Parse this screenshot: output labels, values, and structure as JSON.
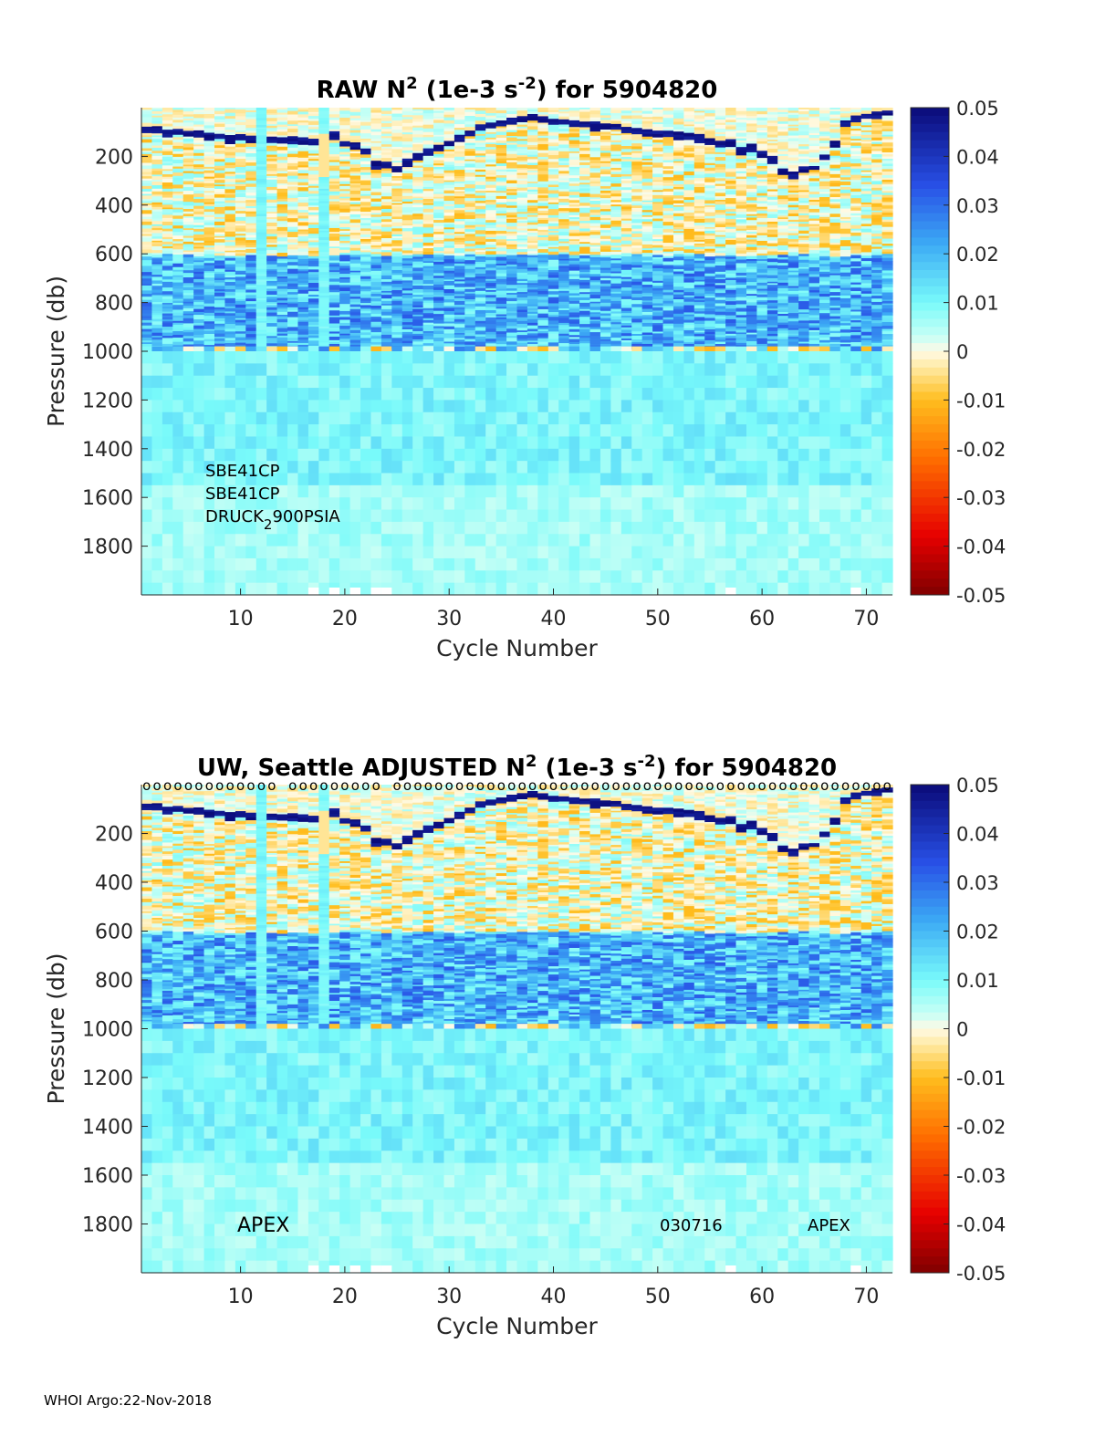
{
  "chart_data": [
    {
      "type": "heatmap",
      "title": "RAW N",
      "title_sup1": "2",
      "title_mid": " (1e-3 s",
      "title_sup2": "-2",
      "title_end": ") for 5904820",
      "xlabel": "Cycle Number",
      "ylabel": "Pressure (db)",
      "xlim": [
        1,
        72
      ],
      "ylim": [
        0,
        2000
      ],
      "xticks": [
        10,
        20,
        30,
        40,
        50,
        60,
        70
      ],
      "yticks": [
        200,
        400,
        600,
        800,
        1000,
        1200,
        1400,
        1600,
        1800
      ],
      "colorbar": {
        "range": [
          -0.05,
          0.05
        ],
        "ticks": [
          "0.05",
          "0.04",
          "0.03",
          "0.02",
          "0.01",
          "0",
          "-0.01",
          "-0.02",
          "-0.03",
          "-0.04",
          "-0.05"
        ]
      },
      "annotations": [
        "SBE41CP",
        "SBE41CP",
        "DRUCK",
        "2",
        "900PSIA"
      ],
      "thermocline_pressure": [
        80,
        85,
        95,
        95,
        100,
        105,
        115,
        110,
        125,
        120,
        125,
        135,
        130,
        130,
        125,
        135,
        140,
        130,
        110,
        140,
        150,
        175,
        230,
        235,
        240,
        220,
        200,
        180,
        160,
        140,
        120,
        100,
        80,
        70,
        60,
        50,
        40,
        35,
        45,
        50,
        55,
        60,
        65,
        70,
        75,
        75,
        80,
        90,
        95,
        100,
        105,
        110,
        115,
        120,
        125,
        140,
        140,
        170,
        160,
        190,
        210,
        260,
        270,
        250,
        240,
        200,
        140,
        60,
        40,
        30,
        20,
        15
      ]
    },
    {
      "type": "heatmap",
      "title": "UW, Seattle  ADJUSTED N",
      "title_sup1": "2",
      "title_mid": " (1e-3 s",
      "title_sup2": "-2",
      "title_end": ") for 5904820",
      "xlabel": "Cycle Number",
      "ylabel": "Pressure (db)",
      "xlim": [
        1,
        72
      ],
      "ylim": [
        0,
        2000
      ],
      "xticks": [
        10,
        20,
        30,
        40,
        50,
        60,
        70
      ],
      "yticks": [
        200,
        400,
        600,
        800,
        1000,
        1200,
        1400,
        1600,
        1800
      ],
      "colorbar": {
        "range": [
          -0.05,
          0.05
        ],
        "ticks": [
          "0.05",
          "0.04",
          "0.03",
          "0.02",
          "0.01",
          "0",
          "-0.01",
          "-0.02",
          "-0.03",
          "-0.04",
          "-0.05"
        ]
      },
      "annotations": [
        "APEX",
        "030716",
        "APEX"
      ],
      "qc_flags": "o",
      "qc_flag_cycles": [
        1,
        2,
        3,
        4,
        5,
        6,
        7,
        8,
        9,
        10,
        11,
        12,
        13,
        15,
        16,
        17,
        18,
        19,
        20,
        21,
        22,
        23,
        25,
        26,
        27,
        28,
        29,
        30,
        31,
        32,
        33,
        34,
        35,
        36,
        37,
        38,
        39,
        40,
        41,
        42,
        43,
        44,
        45,
        46,
        47,
        48,
        49,
        50,
        51,
        52,
        53,
        54,
        55,
        56,
        57,
        58,
        59,
        60,
        61,
        62,
        63,
        64,
        65,
        66,
        67,
        68,
        69,
        70,
        71,
        72
      ]
    }
  ],
  "footer": "WHOI Argo:22-Nov-2018"
}
